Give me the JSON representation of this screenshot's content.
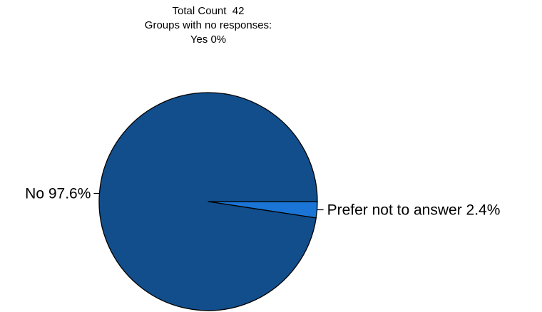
{
  "header": {
    "total_line": "Total Count  42",
    "no_response_line": "Groups with no responses:",
    "no_response_groups": "Yes 0%"
  },
  "chart_data": {
    "type": "pie",
    "title": "",
    "slices": [
      {
        "label": "No 97.6%",
        "category": "No",
        "value": 97.6,
        "color": "#124e8c"
      },
      {
        "label": "Prefer not to answer 2.4%",
        "category": "Prefer not to answer",
        "value": 2.4,
        "color": "#1b75d6"
      }
    ],
    "total_count": 42,
    "start_direction": "east",
    "order": "clockwise-prefer-first"
  }
}
